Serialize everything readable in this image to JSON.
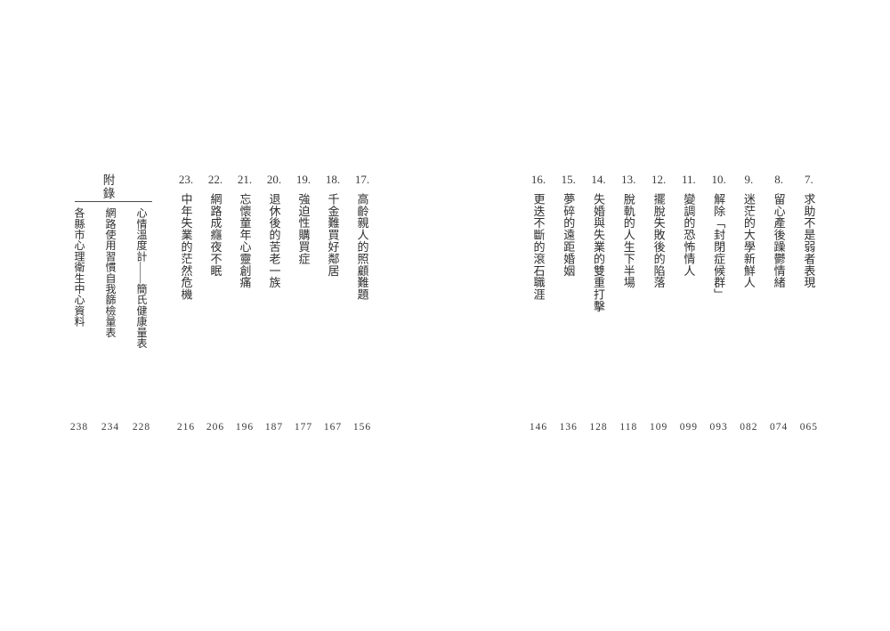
{
  "page": {
    "background": "#ffffff",
    "text_color": "#2d2d2d"
  },
  "toc": {
    "right_items": [
      {
        "num": "7.",
        "title": "求助不是弱者表現",
        "page": "065"
      },
      {
        "num": "8.",
        "title": "留心產後躁鬱情緒",
        "page": "074"
      },
      {
        "num": "9.",
        "title": "迷茫的大學新鮮人",
        "page": "082"
      },
      {
        "num": "10.",
        "title": "解除「封閉症候群」",
        "page": "093"
      },
      {
        "num": "11.",
        "title": "變調的恐怖情人",
        "page": "099"
      },
      {
        "num": "12.",
        "title": "擺脫失敗後的陷落",
        "page": "109"
      },
      {
        "num": "13.",
        "title": "脫軌的人生下半場",
        "page": "118"
      },
      {
        "num": "14.",
        "title": "失婚與失業的雙重打擊",
        "page": "128"
      },
      {
        "num": "15.",
        "title": "夢碎的遠距婚姻",
        "page": "136"
      },
      {
        "num": "16.",
        "title": "更迭不斷的滾石職涯",
        "page": "146"
      }
    ],
    "left_items": [
      {
        "num": "17.",
        "title": "高齡親人的照顧難題",
        "page": "156"
      },
      {
        "num": "18.",
        "title": "千金難買好鄰居",
        "page": "167"
      },
      {
        "num": "19.",
        "title": "強迫性購買症",
        "page": "177"
      },
      {
        "num": "20.",
        "title": "退休後的苦老一族",
        "page": "187"
      },
      {
        "num": "21.",
        "title": "忘懷童年心靈創痛",
        "page": "196"
      },
      {
        "num": "22.",
        "title": "網路成癮夜不眠",
        "page": "206"
      },
      {
        "num": "23.",
        "title": "中年失業的茫然危機",
        "page": "216"
      }
    ],
    "appendix": {
      "heading": "附錄",
      "items": [
        {
          "title": "心情溫度計——簡氏健康量表",
          "page": "228"
        },
        {
          "title": "網路使用習慣自我篩檢量表",
          "page": "234"
        },
        {
          "title": "各縣市心理衛生中心資料",
          "page": "238"
        }
      ]
    }
  }
}
